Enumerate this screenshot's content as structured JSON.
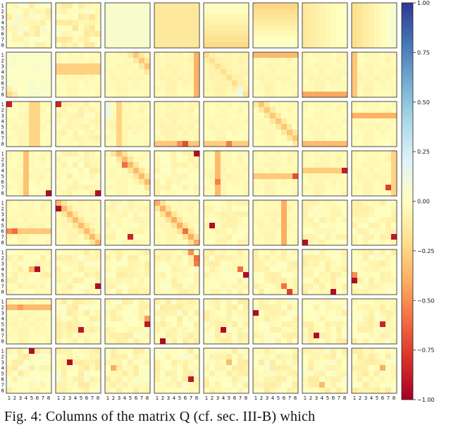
{
  "caption": "Fig. 4: Columns of the matrix Q (cf. sec. III-B) which",
  "chart_data": {
    "type": "heatmap",
    "grid": {
      "rows": 8,
      "cols": 8
    },
    "cell_size": 8,
    "tick_labels": [
      "1",
      "2",
      "3",
      "4",
      "5",
      "6",
      "7",
      "8"
    ],
    "colorbar": {
      "range": [
        -1.0,
        1.0
      ],
      "ticks": [
        1.0,
        0.75,
        0.5,
        0.25,
        0.0,
        -0.25,
        -0.5,
        -0.75,
        -1.0
      ],
      "tick_labels": [
        "1.00",
        "0.75",
        "0.50",
        "0.25",
        "0.00",
        "−0.25",
        "−0.50",
        "−0.75",
        "−1.00"
      ],
      "colors_top_to_bottom": [
        "#313695",
        "#4575b4",
        "#74add1",
        "#abd9e9",
        "#e0f3f8",
        "#ffffbf",
        "#fee090",
        "#fdae61",
        "#f46d43",
        "#d73027",
        "#a50026"
      ]
    },
    "panels": [
      [
        {
          "type": "noise",
          "base": -0.03,
          "amp": 0.1,
          "seed": 1
        },
        {
          "type": "noise",
          "base": -0.05,
          "amp": 0.11,
          "seed": 2
        },
        {
          "type": "const",
          "base": 0.05
        },
        {
          "type": "const",
          "base": -0.15
        },
        {
          "type": "rowgrad",
          "from": 0.02,
          "to": -0.22
        },
        {
          "type": "rowgrad",
          "from": -0.24,
          "to": 0.04
        },
        {
          "type": "colgrad",
          "from": -0.14,
          "to": 0.02
        },
        {
          "type": "colgrad",
          "from": -0.2,
          "to": 0.06
        }
      ],
      [
        {
          "type": "diag",
          "base": 0.03,
          "peak": -0.22,
          "peakCol": 0,
          "peakRow": 7
        },
        {
          "type": "rowline",
          "base": -0.03,
          "line": -0.26,
          "rows": [
            2,
            3
          ]
        },
        {
          "type": "diag",
          "base": -0.04,
          "peak": -0.3,
          "peakCol": 5,
          "peakRow": 0
        },
        {
          "type": "colline",
          "base": -0.05,
          "line": -0.38,
          "cols": [
            7
          ]
        },
        {
          "type": "diag",
          "base": -0.06,
          "peak": -0.2,
          "peakCol": 1,
          "peakRow": 1,
          "cool": [
            [
              6,
              6
            ],
            [
              7,
              6
            ]
          ]
        },
        {
          "type": "rowline",
          "base": -0.04,
          "line": -0.35,
          "rows": [
            0
          ]
        },
        {
          "type": "rowline",
          "base": -0.04,
          "line": -0.42,
          "rows": [
            7
          ]
        },
        {
          "type": "colline",
          "base": -0.04,
          "line": -0.3,
          "cols": [
            0
          ]
        }
      ],
      [
        {
          "type": "colline",
          "base": -0.03,
          "line": -0.24,
          "cols": [
            4,
            5
          ],
          "spot": [
            [
              0,
              0,
              -0.88
            ]
          ]
        },
        {
          "type": "noise",
          "base": -0.04,
          "amp": 0.06,
          "seed": 7,
          "spot": [
            [
              0,
              0,
              -0.85
            ]
          ]
        },
        {
          "type": "colline",
          "base": -0.04,
          "line": -0.25,
          "cols": [
            2
          ],
          "cool": [
            [
              0,
              0
            ],
            [
              1,
              0
            ],
            [
              2,
              0
            ]
          ]
        },
        {
          "type": "rowline",
          "base": -0.05,
          "line": -0.3,
          "rows": [
            7
          ],
          "spot": [
            [
              7,
              5,
              -0.7
            ],
            [
              7,
              4,
              -0.5
            ]
          ]
        },
        {
          "type": "rowline",
          "base": -0.03,
          "line": -0.28,
          "rows": [
            7
          ],
          "spot": [
            [
              7,
              4,
              -0.55
            ]
          ]
        },
        {
          "type": "diag",
          "base": -0.03,
          "peak": -0.3,
          "peakCol": 1,
          "peakRow": 0
        },
        {
          "type": "rowline",
          "base": -0.03,
          "line": -0.35,
          "rows": [
            7
          ]
        },
        {
          "type": "rowline",
          "base": -0.03,
          "line": -0.38,
          "rows": [
            2
          ]
        }
      ],
      [
        {
          "type": "colline",
          "base": -0.03,
          "line": -0.32,
          "cols": [
            3
          ],
          "spot": [
            [
              7,
              7,
              -0.95
            ]
          ]
        },
        {
          "type": "noise",
          "base": -0.04,
          "amp": 0.07,
          "seed": 11,
          "spot": [
            [
              7,
              7,
              -0.95
            ]
          ]
        },
        {
          "type": "diag",
          "base": -0.03,
          "peak": -0.35,
          "peakCol": 4,
          "peakRow": 2,
          "spot": [
            [
              2,
              3,
              -0.6
            ]
          ]
        },
        {
          "type": "noise",
          "base": -0.03,
          "amp": 0.06,
          "seed": 13,
          "spot": [
            [
              0,
              7,
              -0.95
            ]
          ]
        },
        {
          "type": "colline",
          "base": -0.04,
          "line": -0.35,
          "cols": [
            2
          ],
          "spot": [
            [
              5,
              2,
              -0.55
            ]
          ]
        },
        {
          "type": "rowline",
          "base": -0.04,
          "line": -0.3,
          "rows": [
            4
          ],
          "spot": [
            [
              4,
              7,
              -0.7
            ]
          ]
        },
        {
          "type": "rowline",
          "base": -0.04,
          "line": -0.28,
          "rows": [
            3
          ],
          "spot": [
            [
              3,
              7,
              -0.88
            ]
          ]
        },
        {
          "type": "colline",
          "base": -0.04,
          "line": -0.25,
          "cols": [
            7
          ],
          "spot": [
            [
              6,
              6,
              -0.75
            ]
          ]
        }
      ],
      [
        {
          "type": "rowline",
          "base": -0.04,
          "line": -0.3,
          "rows": [
            5
          ],
          "spot": [
            [
              5,
              1,
              -0.6
            ],
            [
              5,
              0,
              -0.5
            ]
          ]
        },
        {
          "type": "diag",
          "base": -0.04,
          "peak": -0.35,
          "peakCol": 1,
          "peakRow": 1,
          "spot": [
            [
              1,
              0,
              -0.95
            ]
          ]
        },
        {
          "type": "noise",
          "base": -0.03,
          "amp": 0.06,
          "seed": 17,
          "spot": [
            [
              6,
              4,
              -0.85
            ]
          ]
        },
        {
          "type": "diag",
          "base": -0.04,
          "peak": -0.4,
          "peakCol": 0,
          "peakRow": 0,
          "spot": [
            [
              5,
              5,
              -0.6
            ]
          ]
        },
        {
          "type": "noise",
          "base": -0.04,
          "amp": 0.06,
          "seed": 19,
          "spot": [
            [
              4,
              1,
              -0.95
            ]
          ]
        },
        {
          "type": "colline",
          "base": -0.04,
          "line": -0.4,
          "cols": [
            5
          ]
        },
        {
          "type": "noise",
          "base": -0.04,
          "amp": 0.06,
          "seed": 21,
          "spot": [
            [
              7,
              0,
              -0.95
            ]
          ]
        },
        {
          "type": "noise",
          "base": -0.04,
          "amp": 0.06,
          "seed": 22,
          "spot": [
            [
              6,
              7,
              -0.9
            ]
          ]
        }
      ],
      [
        {
          "type": "noise",
          "base": -0.04,
          "amp": 0.07,
          "seed": 23,
          "spot": [
            [
              3,
              5,
              -0.95
            ],
            [
              3,
              4,
              -0.4
            ]
          ]
        },
        {
          "type": "noise",
          "base": -0.04,
          "amp": 0.07,
          "seed": 24,
          "spot": [
            [
              6,
              7,
              -0.95
            ]
          ]
        },
        {
          "type": "noise",
          "base": -0.04,
          "amp": 0.07,
          "seed": 25
        },
        {
          "type": "noise",
          "base": -0.04,
          "amp": 0.07,
          "seed": 26,
          "spot": [
            [
              1,
              7,
              -0.6
            ],
            [
              2,
              7,
              -0.55
            ],
            [
              0,
              6,
              -0.5
            ]
          ]
        },
        {
          "type": "noise",
          "base": -0.04,
          "amp": 0.07,
          "seed": 27,
          "spot": [
            [
              3,
              6,
              -0.6
            ],
            [
              4,
              7,
              -0.95
            ]
          ]
        },
        {
          "type": "noise",
          "base": -0.04,
          "amp": 0.07,
          "seed": 28,
          "spot": [
            [
              6,
              5,
              -0.6
            ],
            [
              7,
              6,
              -0.75
            ]
          ]
        },
        {
          "type": "noise",
          "base": -0.04,
          "amp": 0.07,
          "seed": 29,
          "spot": [
            [
              7,
              5,
              -0.95
            ]
          ]
        },
        {
          "type": "noise",
          "base": -0.04,
          "amp": 0.07,
          "seed": 30,
          "spot": [
            [
              5,
              0,
              -0.95
            ],
            [
              4,
              0,
              -0.5
            ]
          ]
        }
      ],
      [
        {
          "type": "rowline",
          "base": -0.04,
          "line": -0.35,
          "rows": [
            1
          ],
          "spot": [
            [
              1,
              2,
              -0.45
            ]
          ]
        },
        {
          "type": "noise",
          "base": -0.04,
          "amp": 0.08,
          "seed": 32,
          "spot": [
            [
              5,
              4,
              -0.9
            ]
          ]
        },
        {
          "type": "noise",
          "base": -0.04,
          "amp": 0.08,
          "seed": 33,
          "spot": [
            [
              3,
              7,
              -0.45
            ],
            [
              4,
              7,
              -0.9
            ]
          ]
        },
        {
          "type": "noise",
          "base": -0.04,
          "amp": 0.08,
          "seed": 34,
          "spot": [
            [
              7,
              1,
              -0.95
            ]
          ]
        },
        {
          "type": "noise",
          "base": -0.04,
          "amp": 0.08,
          "seed": 35,
          "spot": [
            [
              5,
              3,
              -0.95
            ]
          ]
        },
        {
          "type": "noise",
          "base": -0.04,
          "amp": 0.08,
          "seed": 36,
          "spot": [
            [
              2,
              0,
              -0.95
            ]
          ]
        },
        {
          "type": "noise",
          "base": -0.04,
          "amp": 0.08,
          "seed": 37,
          "spot": [
            [
              6,
              2,
              -0.95
            ]
          ]
        },
        {
          "type": "noise",
          "base": -0.04,
          "amp": 0.08,
          "seed": 38,
          "spot": [
            [
              4,
              5,
              -0.85
            ]
          ]
        }
      ],
      [
        {
          "type": "noise",
          "base": -0.04,
          "amp": 0.09,
          "seed": 39,
          "spot": [
            [
              0,
              4,
              -0.95
            ]
          ]
        },
        {
          "type": "noise",
          "base": -0.04,
          "amp": 0.09,
          "seed": 40,
          "spot": [
            [
              2,
              2,
              -0.95
            ]
          ]
        },
        {
          "type": "noise",
          "base": -0.04,
          "amp": 0.09,
          "seed": 41,
          "spot": [
            [
              3,
              1,
              -0.4
            ]
          ]
        },
        {
          "type": "noise",
          "base": -0.04,
          "amp": 0.09,
          "seed": 42,
          "spot": [
            [
              5,
              6,
              -0.9
            ]
          ]
        },
        {
          "type": "noise",
          "base": -0.04,
          "amp": 0.09,
          "seed": 43,
          "spot": [
            [
              2,
              4,
              -0.35
            ]
          ]
        },
        {
          "type": "noise",
          "base": -0.04,
          "amp": 0.09,
          "seed": 44
        },
        {
          "type": "noise",
          "base": -0.04,
          "amp": 0.09,
          "seed": 45,
          "spot": [
            [
              6,
              3,
              -0.35
            ]
          ]
        },
        {
          "type": "noise",
          "base": -0.04,
          "amp": 0.09,
          "seed": 46,
          "spot": [
            [
              3,
              5,
              -0.4
            ]
          ]
        }
      ]
    ]
  }
}
